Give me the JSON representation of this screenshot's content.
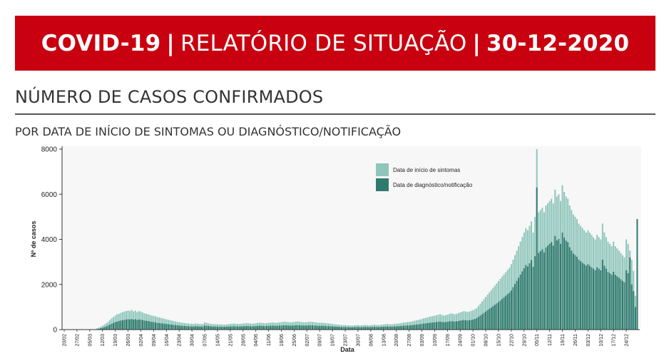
{
  "header": {
    "title_part1": "COVID-19",
    "title_part2": "RELATÓRIO DE SITUAÇÃO",
    "title_part3": "30-12-2020",
    "separator": "|"
  },
  "section": {
    "title": "NÚMERO DE CASOS CONFIRMADOS",
    "subtitle": "POR DATA DE INÍCIO DE SINTOMAS OU DIAGNÓSTICO/NOTIFICAÇÃO"
  },
  "colors": {
    "banner": "#c8000f",
    "series_symptoms": "#8fc6bb",
    "series_diagnosis": "#2f7a6e"
  },
  "chart_data": {
    "type": "bar",
    "xlabel": "Data",
    "ylabel": "Nº de casos",
    "ylim": [
      0,
      8000
    ],
    "yticks": [
      0,
      2000,
      4000,
      6000,
      8000
    ],
    "x_tick_labels": [
      "20/02",
      "27/02",
      "05/03",
      "12/03",
      "19/03",
      "26/03",
      "02/04",
      "09/04",
      "16/04",
      "23/04",
      "30/04",
      "07/05",
      "14/05",
      "21/05",
      "28/05",
      "04/06",
      "11/06",
      "18/06",
      "25/06",
      "02/07",
      "09/07",
      "16/07",
      "23/07",
      "30/07",
      "06/08",
      "13/08",
      "20/08",
      "27/08",
      "03/09",
      "10/09",
      "17/09",
      "24/09",
      "01/10",
      "08/10",
      "15/10",
      "22/10",
      "29/10",
      "05/11",
      "12/11",
      "19/11",
      "26/11",
      "03/12",
      "10/12",
      "17/12",
      "24/12"
    ],
    "legend_position": "top-right",
    "series": [
      {
        "name": "Data de início de sintomas",
        "weekly_values": [
          [
            0,
            0,
            0,
            0,
            0,
            0,
            0
          ],
          [
            0,
            0,
            0,
            0,
            0,
            0,
            0
          ],
          [
            5,
            10,
            15,
            30,
            60,
            90,
            130
          ],
          [
            170,
            220,
            280,
            340,
            420,
            500,
            560
          ],
          [
            620,
            680,
            700,
            740,
            780,
            800,
            820
          ],
          [
            850,
            820,
            880,
            800,
            850,
            780,
            820
          ],
          [
            800,
            760,
            720,
            700,
            680,
            650,
            620
          ],
          [
            610,
            590,
            560,
            540,
            520,
            500,
            480
          ],
          [
            460,
            440,
            420,
            400,
            380,
            360,
            340
          ],
          [
            330,
            310,
            300,
            290,
            280,
            270,
            260
          ],
          [
            260,
            250,
            270,
            260,
            250,
            240,
            250
          ],
          [
            320,
            300,
            280,
            260,
            250,
            240,
            240
          ],
          [
            240,
            230,
            230,
            220,
            220,
            230,
            240
          ],
          [
            250,
            260,
            270,
            260,
            250,
            250,
            260
          ],
          [
            270,
            280,
            290,
            280,
            270,
            260,
            270
          ],
          [
            280,
            300,
            310,
            300,
            290,
            280,
            290
          ],
          [
            300,
            310,
            320,
            310,
            300,
            310,
            320
          ],
          [
            330,
            340,
            350,
            340,
            330,
            320,
            330
          ],
          [
            340,
            350,
            360,
            350,
            340,
            330,
            320
          ],
          [
            330,
            340,
            350,
            340,
            330,
            320,
            310
          ],
          [
            300,
            310,
            300,
            290,
            280,
            270,
            260
          ],
          [
            250,
            240,
            230,
            220,
            210,
            200,
            200
          ],
          [
            200,
            190,
            190,
            180,
            180,
            190,
            200
          ],
          [
            200,
            190,
            190,
            200,
            210,
            200,
            190
          ],
          [
            200,
            210,
            220,
            210,
            200,
            210,
            220
          ],
          [
            230,
            240,
            250,
            240,
            230,
            240,
            250
          ],
          [
            260,
            270,
            280,
            300,
            310,
            320,
            330
          ],
          [
            340,
            350,
            370,
            390,
            410,
            430,
            450
          ],
          [
            470,
            500,
            520,
            540,
            560,
            580,
            600
          ],
          [
            620,
            640,
            660,
            680,
            650,
            620,
            640
          ],
          [
            660,
            690,
            720,
            700,
            680,
            700,
            730
          ],
          [
            760,
            790,
            820,
            800,
            780,
            800,
            830
          ],
          [
            860,
            900,
            950,
            1050,
            1150,
            1250,
            1350
          ],
          [
            1450,
            1550,
            1650,
            1750,
            1850,
            1950,
            2050
          ],
          [
            2150,
            2250,
            2350,
            2450,
            2550,
            2650,
            2750
          ],
          [
            2900,
            3100,
            3300,
            3500,
            3700,
            3900,
            4100
          ],
          [
            4300,
            4500,
            4400,
            4600,
            4800,
            4300,
            5000
          ],
          [
            8000,
            5200,
            5300,
            5400,
            5200,
            5500,
            5600
          ],
          [
            5700,
            5800,
            5600,
            6200,
            5900,
            6000,
            5700
          ],
          [
            6400,
            6100,
            5900,
            5800,
            5500,
            5300,
            5100
          ],
          [
            5000,
            4900,
            4700,
            4600,
            4500,
            4400,
            4300
          ],
          [
            4400,
            4300,
            4200,
            4100,
            4000,
            4200,
            4100
          ],
          [
            4000,
            4700,
            4300,
            4100,
            3900,
            3800,
            3700
          ],
          [
            3900,
            3700,
            3600,
            3500,
            3400,
            3300,
            3200
          ],
          [
            4000,
            3800,
            3500,
            3100,
            2600,
            1500,
            2600
          ]
        ]
      },
      {
        "name": "Data de diagnóstico/notificação",
        "weekly_values": [
          [
            0,
            0,
            0,
            0,
            0,
            0,
            0
          ],
          [
            0,
            0,
            0,
            0,
            0,
            0,
            0
          ],
          [
            0,
            2,
            5,
            10,
            20,
            40,
            60
          ],
          [
            80,
            110,
            140,
            180,
            220,
            260,
            300
          ],
          [
            330,
            350,
            380,
            400,
            420,
            430,
            450
          ],
          [
            460,
            450,
            470,
            440,
            460,
            430,
            450
          ],
          [
            440,
            420,
            400,
            390,
            380,
            360,
            340
          ],
          [
            330,
            320,
            300,
            290,
            280,
            270,
            260
          ],
          [
            250,
            240,
            230,
            220,
            210,
            200,
            190
          ],
          [
            180,
            170,
            165,
            160,
            155,
            150,
            145
          ],
          [
            140,
            140,
            150,
            145,
            140,
            135,
            140
          ],
          [
            180,
            170,
            160,
            150,
            140,
            135,
            135
          ],
          [
            135,
            130,
            130,
            125,
            125,
            130,
            135
          ],
          [
            140,
            145,
            150,
            145,
            140,
            140,
            145
          ],
          [
            150,
            155,
            160,
            155,
            150,
            145,
            150
          ],
          [
            155,
            165,
            170,
            165,
            160,
            155,
            160
          ],
          [
            165,
            170,
            175,
            170,
            165,
            170,
            175
          ],
          [
            180,
            185,
            190,
            185,
            180,
            175,
            180
          ],
          [
            185,
            190,
            195,
            190,
            185,
            180,
            175
          ],
          [
            180,
            185,
            190,
            185,
            180,
            175,
            170
          ],
          [
            165,
            170,
            165,
            160,
            155,
            150,
            145
          ],
          [
            140,
            135,
            130,
            125,
            120,
            115,
            115
          ],
          [
            115,
            110,
            110,
            105,
            105,
            110,
            115
          ],
          [
            115,
            110,
            110,
            115,
            120,
            115,
            110
          ],
          [
            115,
            120,
            125,
            120,
            115,
            120,
            125
          ],
          [
            130,
            135,
            140,
            135,
            130,
            135,
            140
          ],
          [
            145,
            150,
            155,
            165,
            170,
            175,
            180
          ],
          [
            185,
            190,
            200,
            210,
            220,
            230,
            240
          ],
          [
            250,
            265,
            275,
            285,
            295,
            305,
            315
          ],
          [
            325,
            335,
            345,
            355,
            340,
            325,
            335
          ],
          [
            345,
            360,
            375,
            365,
            355,
            365,
            380
          ],
          [
            395,
            410,
            425,
            415,
            405,
            415,
            430
          ],
          [
            445,
            470,
            500,
            560,
            620,
            680,
            740
          ],
          [
            800,
            860,
            920,
            980,
            1040,
            1100,
            1160
          ],
          [
            1220,
            1290,
            1360,
            1430,
            1500,
            1570,
            1640
          ],
          [
            1740,
            1880,
            2020,
            2160,
            2300,
            2440,
            2580
          ],
          [
            2720,
            2860,
            2800,
            2940,
            3080,
            2780,
            3260
          ],
          [
            6300,
            3400,
            3480,
            3560,
            3420,
            3640,
            3720
          ],
          [
            3800,
            3880,
            3720,
            4150,
            3950,
            4020,
            3800
          ],
          [
            4300,
            4080,
            3940,
            3870,
            3650,
            3500,
            3370
          ],
          [
            3300,
            3230,
            3100,
            3030,
            2960,
            2900,
            2830
          ],
          [
            2900,
            2830,
            2760,
            2700,
            2630,
            2760,
            2700
          ],
          [
            2630,
            3100,
            2830,
            2700,
            2560,
            2500,
            2430
          ],
          [
            2560,
            2430,
            2360,
            2300,
            2230,
            2160,
            2100
          ],
          [
            2630,
            2500,
            3200,
            2000,
            1700,
            1000,
            4900
          ]
        ]
      }
    ]
  }
}
